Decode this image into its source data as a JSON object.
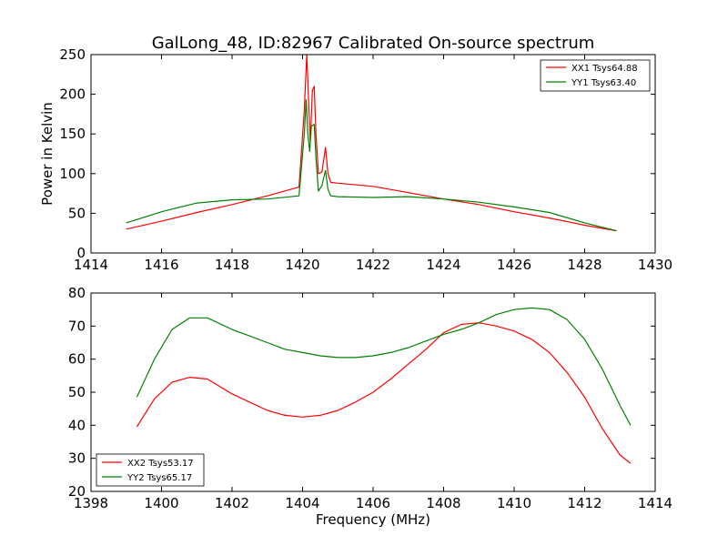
{
  "chart_data": [
    {
      "type": "line",
      "title": "GalLong_48, ID:82967 Calibrated On-source spectrum",
      "xlabel": "",
      "ylabel": "Power in Kelvin",
      "xlim": [
        1414,
        1430
      ],
      "ylim": [
        0,
        250
      ],
      "xticks": [
        1414,
        1416,
        1418,
        1420,
        1422,
        1424,
        1426,
        1428,
        1430
      ],
      "yticks": [
        0,
        50,
        100,
        150,
        200,
        250
      ],
      "legend_position": "top-right",
      "grid": false,
      "series": [
        {
          "name": "XX1 Tsys64.88",
          "color": "#ff0000",
          "points": [
            [
              1415.0,
              30
            ],
            [
              1416.0,
              40
            ],
            [
              1417.0,
              51
            ],
            [
              1418.0,
              61
            ],
            [
              1419.0,
              72
            ],
            [
              1419.9,
              83
            ],
            [
              1420.05,
              180
            ],
            [
              1420.12,
              250
            ],
            [
              1420.18,
              180
            ],
            [
              1420.22,
              140
            ],
            [
              1420.28,
              205
            ],
            [
              1420.33,
              210
            ],
            [
              1420.38,
              150
            ],
            [
              1420.45,
              100
            ],
            [
              1420.55,
              102
            ],
            [
              1420.65,
              133
            ],
            [
              1420.72,
              100
            ],
            [
              1420.8,
              89
            ],
            [
              1421.0,
              88
            ],
            [
              1422.0,
              84
            ],
            [
              1423.0,
              76
            ],
            [
              1424.0,
              68
            ],
            [
              1425.0,
              61
            ],
            [
              1426.0,
              52
            ],
            [
              1427.0,
              44
            ],
            [
              1428.0,
              35
            ],
            [
              1428.9,
              28
            ]
          ]
        },
        {
          "name": "YY1 Tsys63.40",
          "color": "#008000",
          "points": [
            [
              1415.0,
              38
            ],
            [
              1416.0,
              52
            ],
            [
              1417.0,
              63
            ],
            [
              1418.0,
              67
            ],
            [
              1419.0,
              68
            ],
            [
              1419.9,
              72
            ],
            [
              1420.05,
              150
            ],
            [
              1420.1,
              193
            ],
            [
              1420.15,
              150
            ],
            [
              1420.2,
              128
            ],
            [
              1420.25,
              160
            ],
            [
              1420.33,
              162
            ],
            [
              1420.38,
              120
            ],
            [
              1420.45,
              78
            ],
            [
              1420.55,
              85
            ],
            [
              1420.65,
              104
            ],
            [
              1420.72,
              80
            ],
            [
              1420.8,
              72
            ],
            [
              1421.0,
              71
            ],
            [
              1422.0,
              70
            ],
            [
              1423.0,
              71
            ],
            [
              1424.0,
              68
            ],
            [
              1425.0,
              64
            ],
            [
              1426.0,
              58
            ],
            [
              1427.0,
              51
            ],
            [
              1428.0,
              38
            ],
            [
              1428.9,
              28
            ]
          ]
        }
      ]
    },
    {
      "type": "line",
      "title": "",
      "xlabel": "Frequency (MHz)",
      "ylabel": "",
      "xlim": [
        1398,
        1414
      ],
      "ylim": [
        20,
        80
      ],
      "xticks": [
        1398,
        1400,
        1402,
        1404,
        1406,
        1408,
        1410,
        1412,
        1414
      ],
      "yticks": [
        20,
        30,
        40,
        50,
        60,
        70,
        80
      ],
      "legend_position": "bottom-left",
      "grid": false,
      "series": [
        {
          "name": "XX2 Tsys53.17",
          "color": "#ff0000",
          "points": [
            [
              1399.3,
              39.5
            ],
            [
              1399.8,
              48
            ],
            [
              1400.3,
              53
            ],
            [
              1400.8,
              54.5
            ],
            [
              1401.3,
              54
            ],
            [
              1402.0,
              49.5
            ],
            [
              1402.5,
              47
            ],
            [
              1403.0,
              44.5
            ],
            [
              1403.5,
              43
            ],
            [
              1404.0,
              42.5
            ],
            [
              1404.5,
              43
            ],
            [
              1405.0,
              44.5
            ],
            [
              1405.5,
              47
            ],
            [
              1406.0,
              50
            ],
            [
              1406.5,
              54
            ],
            [
              1407.0,
              58.5
            ],
            [
              1407.5,
              63
            ],
            [
              1408.0,
              68
            ],
            [
              1408.5,
              70.5
            ],
            [
              1409.0,
              71
            ],
            [
              1409.5,
              70
            ],
            [
              1410.0,
              68.5
            ],
            [
              1410.5,
              66
            ],
            [
              1411.0,
              62
            ],
            [
              1411.5,
              56
            ],
            [
              1412.0,
              48.5
            ],
            [
              1412.5,
              39
            ],
            [
              1413.0,
              31
            ],
            [
              1413.3,
              28.5
            ]
          ]
        },
        {
          "name": "YY2 Tsys65.17",
          "color": "#008000",
          "points": [
            [
              1399.3,
              48.5
            ],
            [
              1399.8,
              60
            ],
            [
              1400.3,
              69
            ],
            [
              1400.8,
              72.5
            ],
            [
              1401.3,
              72.5
            ],
            [
              1402.0,
              69
            ],
            [
              1402.5,
              67
            ],
            [
              1403.0,
              65
            ],
            [
              1403.5,
              63
            ],
            [
              1404.0,
              62
            ],
            [
              1404.5,
              61
            ],
            [
              1405.0,
              60.5
            ],
            [
              1405.5,
              60.5
            ],
            [
              1406.0,
              61
            ],
            [
              1406.5,
              62
            ],
            [
              1407.0,
              63.5
            ],
            [
              1407.5,
              65.5
            ],
            [
              1408.0,
              67.5
            ],
            [
              1408.5,
              69
            ],
            [
              1409.0,
              71
            ],
            [
              1409.5,
              73.5
            ],
            [
              1410.0,
              75
            ],
            [
              1410.5,
              75.5
            ],
            [
              1411.0,
              75
            ],
            [
              1411.5,
              72
            ],
            [
              1412.0,
              66
            ],
            [
              1412.5,
              57
            ],
            [
              1413.0,
              46
            ],
            [
              1413.3,
              40
            ]
          ]
        }
      ]
    }
  ]
}
